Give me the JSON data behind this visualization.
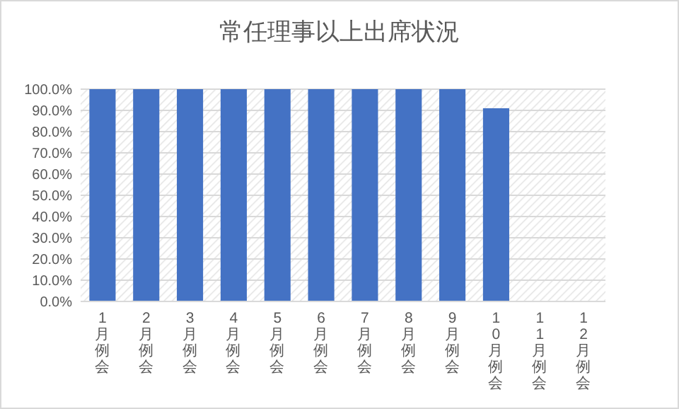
{
  "chart_data": {
    "type": "bar",
    "title": "常任理事以上出席状況",
    "categories": [
      "1月例会",
      "2月例会",
      "3月例会",
      "4月例会",
      "5月例会",
      "6月例会",
      "7月例会",
      "8月例会",
      "9月例会",
      "10月例会",
      "11月例会",
      "12月例会"
    ],
    "values": [
      100,
      100,
      100,
      100,
      100,
      100,
      100,
      100,
      100,
      91,
      null,
      null
    ],
    "color": "#4472c4",
    "ylim": [
      0,
      100
    ],
    "yticks": [
      {
        "value": 0,
        "label": "0.0%"
      },
      {
        "value": 10,
        "label": "10.0%"
      },
      {
        "value": 20,
        "label": "20.0%"
      },
      {
        "value": 30,
        "label": "30.0%"
      },
      {
        "value": 40,
        "label": "40.0%"
      },
      {
        "value": 50,
        "label": "50.0%"
      },
      {
        "value": 60,
        "label": "60.0%"
      },
      {
        "value": 70,
        "label": "70.0%"
      },
      {
        "value": 80,
        "label": "80.0%"
      },
      {
        "value": 90,
        "label": "90.0%"
      },
      {
        "value": 100,
        "label": "100.0%"
      }
    ],
    "grid": "y"
  }
}
